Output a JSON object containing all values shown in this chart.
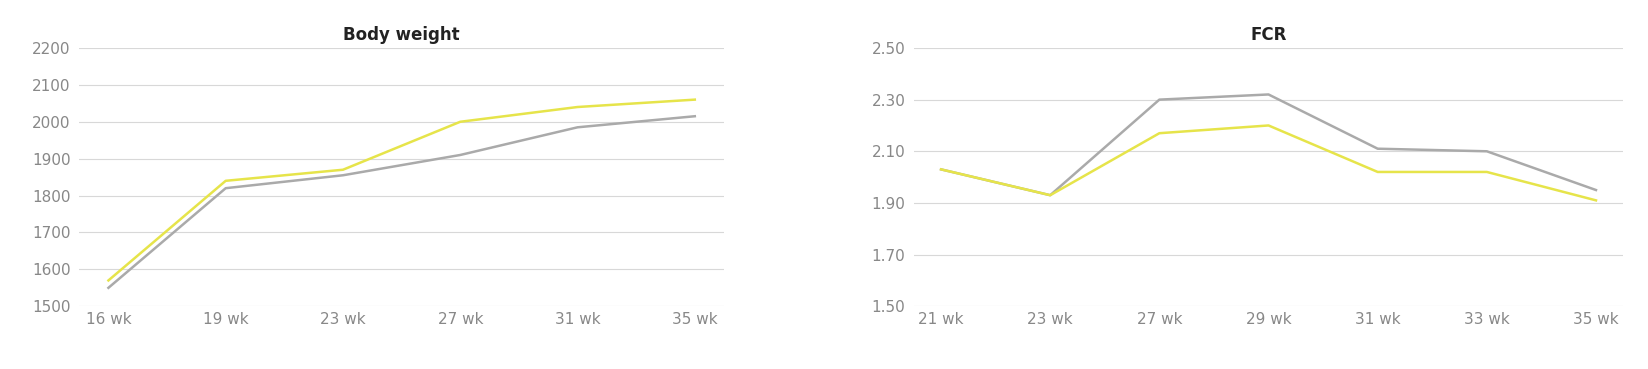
{
  "bw_title": "Body weight",
  "bw_x_labels": [
    "16 wk",
    "19 wk",
    "23 wk",
    "27 wk",
    "31 wk",
    "35 wk"
  ],
  "bw_yellow": [
    1570,
    1840,
    1870,
    2000,
    2040,
    2060
  ],
  "bw_gray": [
    1550,
    1820,
    1855,
    1910,
    1985,
    2015
  ],
  "bw_ylim": [
    1500,
    2200
  ],
  "bw_yticks": [
    1500,
    1600,
    1700,
    1800,
    1900,
    2000,
    2100,
    2200
  ],
  "fcr_title": "FCR",
  "fcr_x_labels": [
    "21 wk",
    "23 wk",
    "27 wk",
    "29 wk",
    "31 wk",
    "33 wk",
    "35 wk"
  ],
  "fcr_yellow": [
    2.03,
    1.93,
    2.17,
    2.2,
    2.02,
    2.02,
    1.91
  ],
  "fcr_gray": [
    2.03,
    1.93,
    2.3,
    2.32,
    2.11,
    2.1,
    1.95
  ],
  "fcr_ylim": [
    1.5,
    2.5
  ],
  "fcr_yticks": [
    1.5,
    1.7,
    1.9,
    2.1,
    2.3,
    2.5
  ],
  "yellow_color": "#e6e44a",
  "gray_color": "#aaaaaa",
  "line_width": 1.8,
  "grid_color": "#d8d8d8",
  "title_fontsize": 12,
  "tick_fontsize": 11,
  "tick_color": "#888888",
  "bg_color": "#ffffff"
}
